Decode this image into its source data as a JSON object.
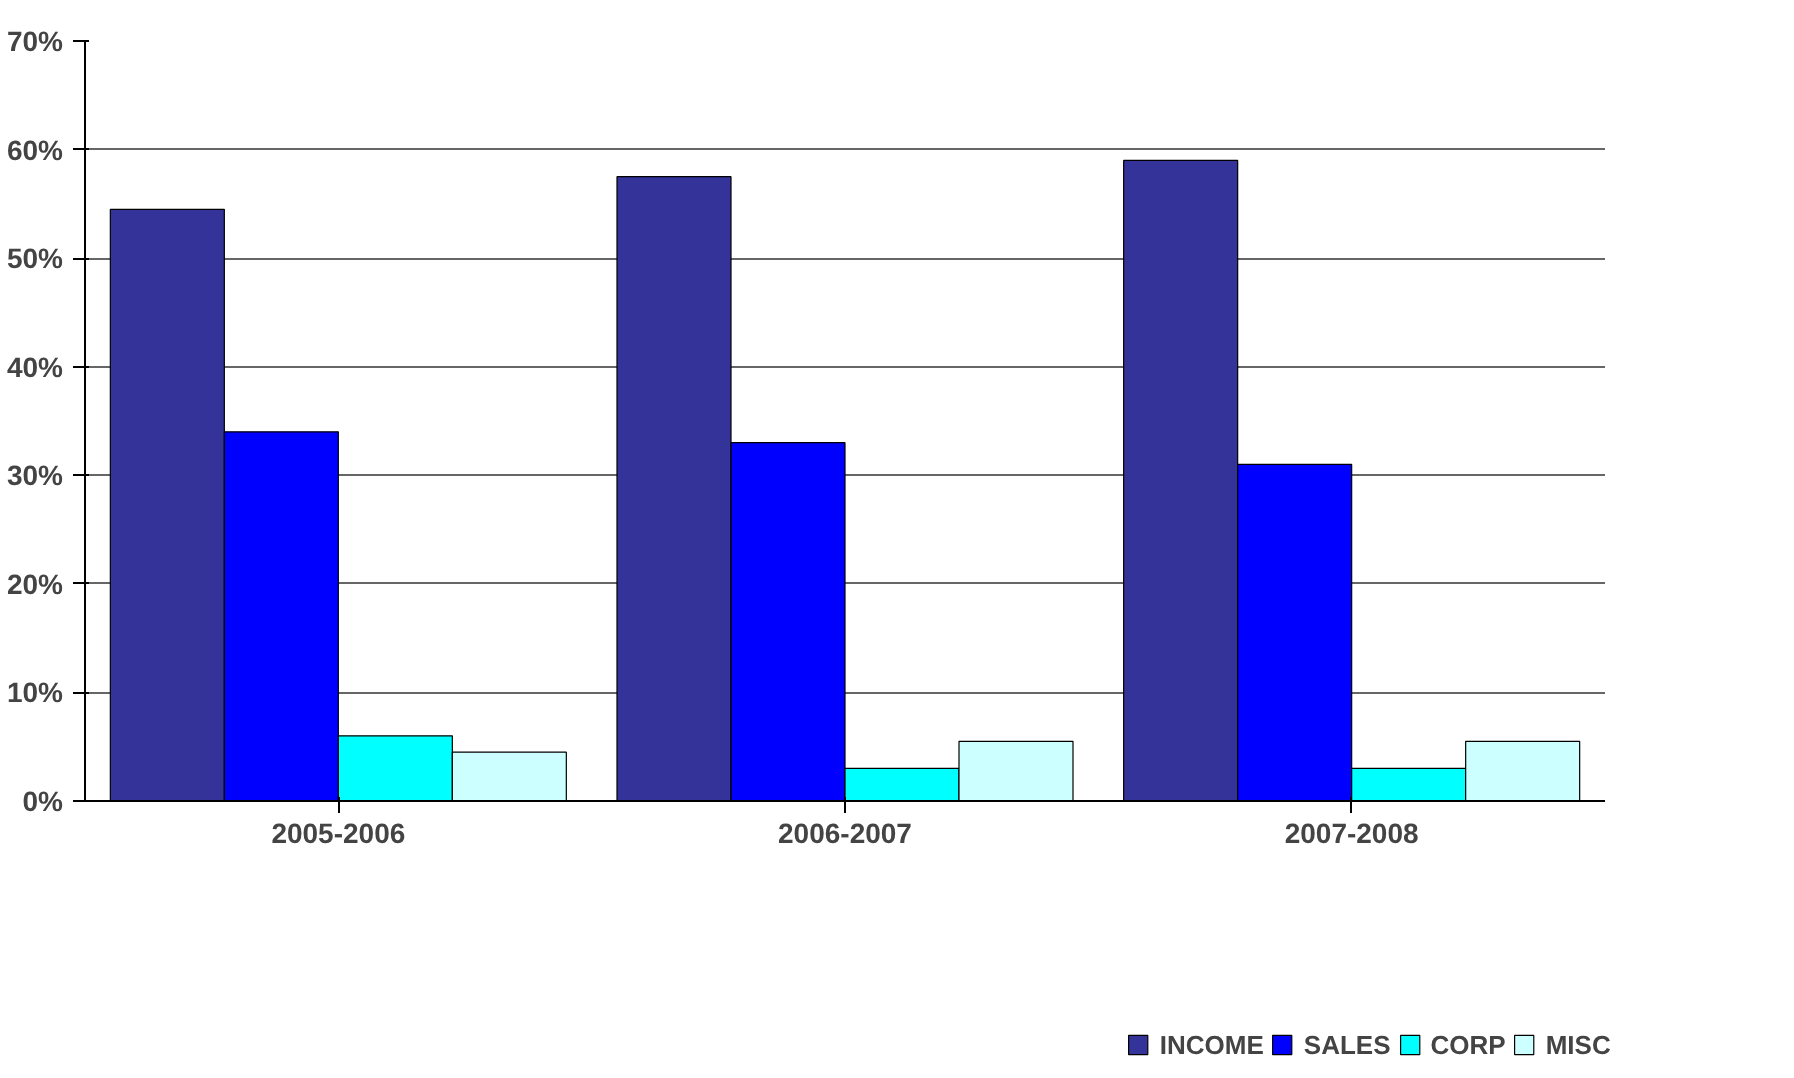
{
  "chart_data": {
    "type": "bar",
    "categories": [
      "2005-2006",
      "2006-2007",
      "2007-2008"
    ],
    "series": [
      {
        "name": "INCOME",
        "color": "#333399",
        "values": [
          54.5,
          57.5,
          59
        ]
      },
      {
        "name": "SALES",
        "color": "#0000ff",
        "values": [
          34,
          33,
          31
        ]
      },
      {
        "name": "CORP",
        "color": "#00ffff",
        "values": [
          6,
          3,
          3
        ]
      },
      {
        "name": "MISC",
        "color": "#ccffff",
        "values": [
          4.5,
          5.5,
          5.5
        ]
      }
    ],
    "ylim": [
      0,
      70
    ],
    "yticks": [
      {
        "value": 0,
        "label": "0%"
      },
      {
        "value": 10,
        "label": "10%"
      },
      {
        "value": 20,
        "label": "20%"
      },
      {
        "value": 30,
        "label": "30%"
      },
      {
        "value": 40,
        "label": "40%"
      },
      {
        "value": 50,
        "label": "50%"
      },
      {
        "value": 60,
        "label": "60%"
      },
      {
        "value": 70,
        "label": "70%"
      }
    ],
    "grid": "y",
    "legend": "bottom"
  }
}
